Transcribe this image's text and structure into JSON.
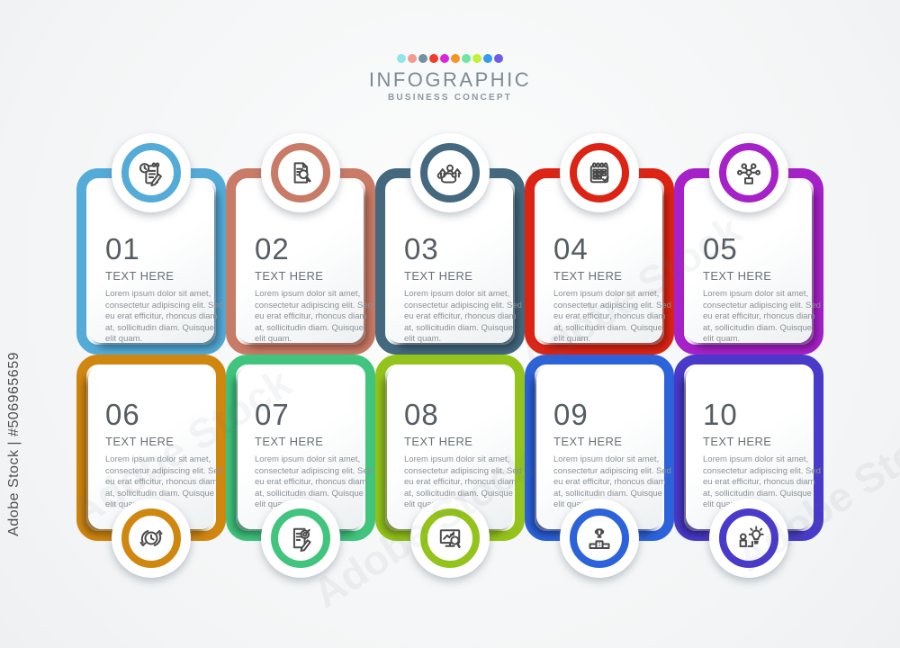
{
  "watermark": {
    "side_label": "Adobe Stock | #506965659",
    "diagonal_label": "Adobe Stock"
  },
  "header": {
    "title": "INFOGRAPHIC",
    "subtitle": "BUSINESS CONCEPT",
    "dot_colors": [
      "#8FE4EE",
      "#F49A8F",
      "#74919F",
      "#F23B28",
      "#DC26DE",
      "#F7941F",
      "#6FE5A0",
      "#C3F036",
      "#339BF2",
      "#6E5BE6"
    ]
  },
  "cards": [
    {
      "number": "01",
      "title": "TEXT HERE",
      "body": "Lorem ipsum dolor sit amet, consectetur adipiscing elit. Sed eu erat efficitur, rhoncus diam at, sollicitudin diam. Quisque elit quam.",
      "accent": "#54ABD7",
      "shadow": "#2B5E7CCC",
      "icon": "clock-checklist-edit-icon"
    },
    {
      "number": "02",
      "title": "TEXT HERE",
      "body": "Lorem ipsum dolor sit amet, consectetur adipiscing elit. Sed eu erat efficitur, rhoncus diam at, sollicitudin diam. Quisque elit quam.",
      "accent": "#C87B66",
      "shadow": "#7C4133CC",
      "icon": "document-search-icon"
    },
    {
      "number": "03",
      "title": "TEXT HERE",
      "body": "Lorem ipsum dolor sit amet, consectetur adipiscing elit. Sed eu erat efficitur, rhoncus diam at, sollicitudin diam. Quisque elit quam.",
      "accent": "#44697F",
      "shadow": "#233A49CC",
      "icon": "growth-arrows-icon"
    },
    {
      "number": "04",
      "title": "TEXT HERE",
      "body": "Lorem ipsum dolor sit amet, consectetur adipiscing elit. Sed eu erat efficitur, rhoncus diam at, sollicitudin diam. Quisque elit quam.",
      "accent": "#DD2414",
      "shadow": "#84130ACC",
      "icon": "schedule-check-icon"
    },
    {
      "number": "05",
      "title": "TEXT HERE",
      "body": "Lorem ipsum dolor sit amet, consectetur adipiscing elit. Sed eu erat efficitur, rhoncus diam at, sollicitudin diam. Quisque elit quam.",
      "accent": "#A621C8",
      "shadow": "#5C0F72CC",
      "icon": "network-structure-icon"
    },
    {
      "number": "06",
      "title": "TEXT HERE",
      "body": "Lorem ipsum dolor sit amet, consectetur adipiscing elit. Sed eu erat efficitur, rhoncus diam at, sollicitudin diam. Quisque elit quam.",
      "accent": "#D0870F",
      "shadow": "#7A4E06CC",
      "icon": "time-cycle-icon"
    },
    {
      "number": "07",
      "title": "TEXT HERE",
      "body": "Lorem ipsum dolor sit amet, consectetur adipiscing elit. Sed eu erat efficitur, rhoncus diam at, sollicitudin diam. Quisque elit quam.",
      "accent": "#41C47D",
      "shadow": "#1D6E46CC",
      "icon": "target-document-icon"
    },
    {
      "number": "08",
      "title": "TEXT HERE",
      "body": "Lorem ipsum dolor sit amet, consectetur adipiscing elit. Sed eu erat efficitur, rhoncus diam at, sollicitudin diam. Quisque elit quam.",
      "accent": "#94C41B",
      "shadow": "#53700CCC",
      "icon": "monitor-analytics-icon"
    },
    {
      "number": "09",
      "title": "TEXT HERE",
      "body": "Lorem ipsum dolor sit amet, consectetur adipiscing elit. Sed eu erat efficitur, rhoncus diam at, sollicitudin diam. Quisque elit quam.",
      "accent": "#2C63DA",
      "shadow": "#142E7ACC",
      "icon": "trophy-podium-icon"
    },
    {
      "number": "10",
      "title": "TEXT HERE",
      "body": "Lorem ipsum dolor sit amet, consectetur adipiscing elit. Sed eu erat efficitur, rhoncus diam at, sollicitudin diam. Quisque elit quam.",
      "accent": "#4A3AC9",
      "shadow": "#241A6ECC",
      "icon": "idea-person-icon"
    }
  ]
}
